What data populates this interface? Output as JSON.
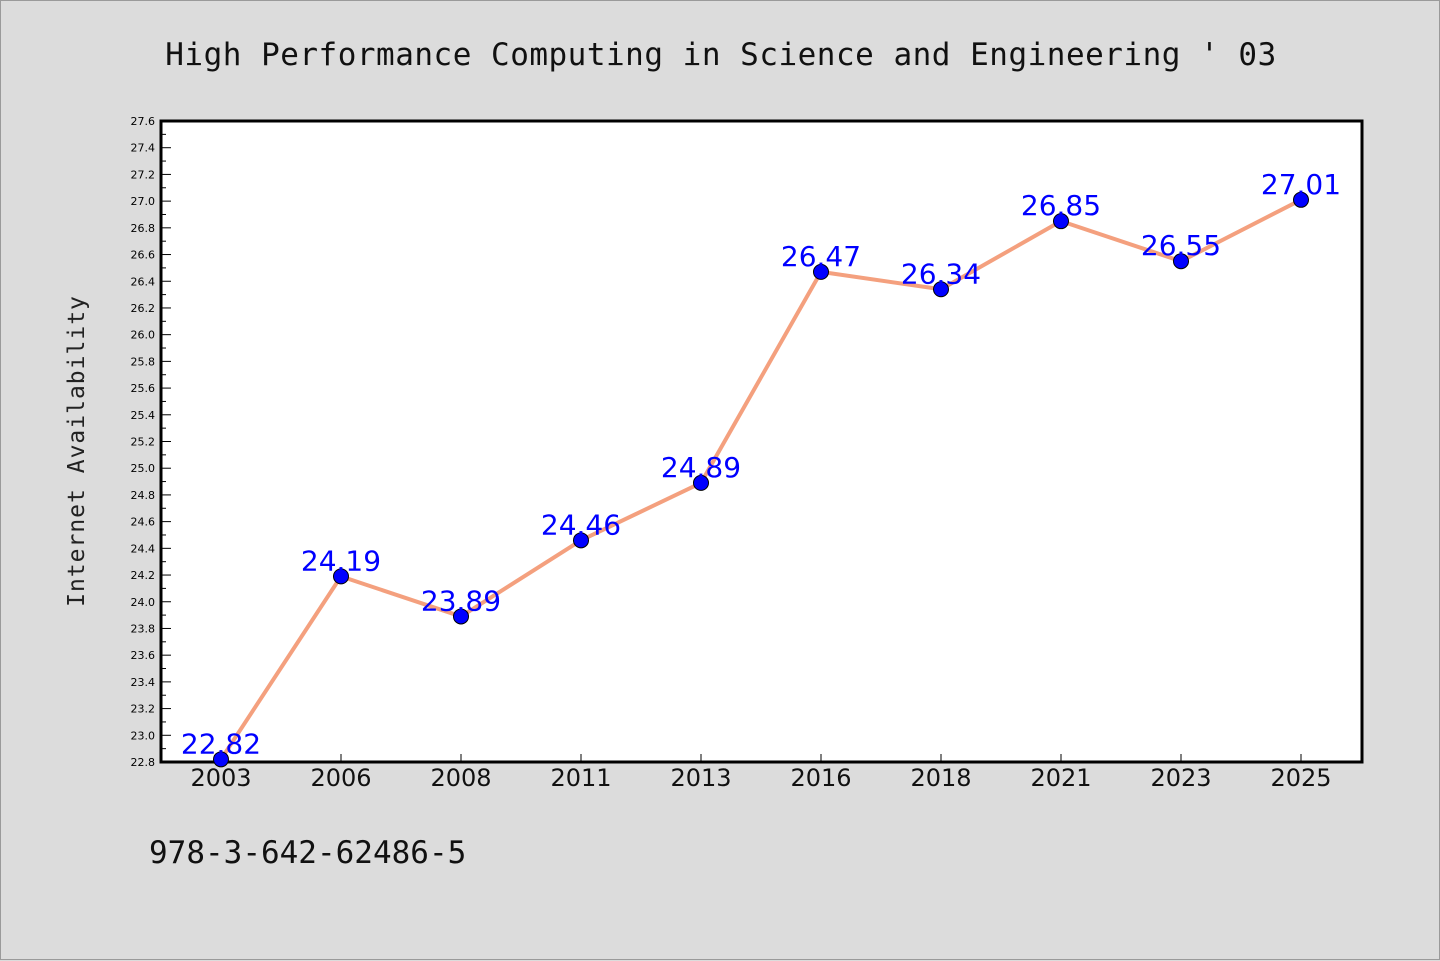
{
  "title": "High Performance Computing in Science and Engineering ' 03",
  "footer_text": "978-3-642-62486-5",
  "colors": {
    "background": "#dcdcdc",
    "plot_background": "#ffffff",
    "line": "#f4a07e",
    "marker": "#0000ff",
    "data_label": "#0000ff"
  },
  "chart_data": {
    "type": "line",
    "title": "High Performance Computing in Science and Engineering ' 03",
    "xlabel": "",
    "ylabel": "Internet Availability",
    "categories": [
      "2003",
      "2006",
      "2008",
      "2011",
      "2013",
      "2016",
      "2018",
      "2021",
      "2023",
      "2025"
    ],
    "series": [
      {
        "values": [
          22.82,
          24.19,
          23.89,
          24.46,
          24.89,
          26.47,
          26.34,
          26.85,
          26.55,
          27.01
        ]
      }
    ],
    "ylim": [
      22.8,
      27.6
    ],
    "ytick_step": 0.2,
    "grid": false,
    "legend": "none",
    "markers": "filled circles",
    "data_labels": true
  }
}
